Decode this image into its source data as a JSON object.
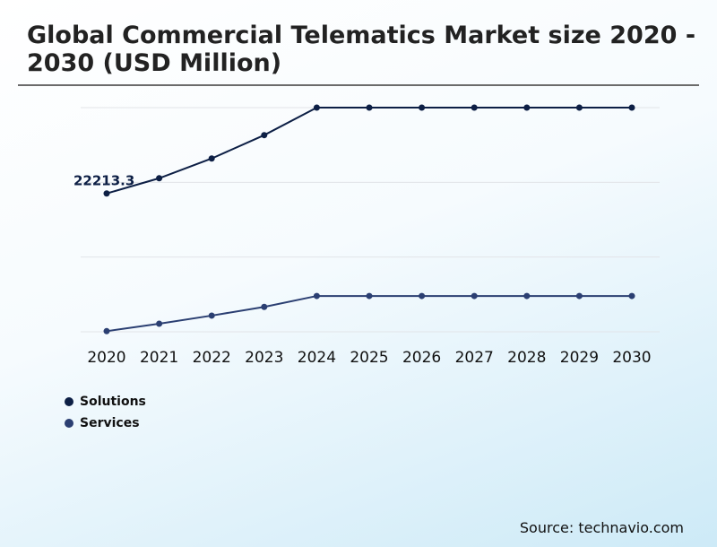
{
  "chart_data": {
    "type": "line",
    "title": "Global Commercial Telematics Market size 2020 - 2030 (USD Million)",
    "categories": [
      "2020",
      "2021",
      "2022",
      "2023",
      "2024",
      "2025",
      "2026",
      "2027",
      "2028",
      "2029",
      "2030"
    ],
    "ylim": [
      0,
      36000
    ],
    "grid": true,
    "legend_position": "bottom-left",
    "series": [
      {
        "name": "Solutions",
        "color": "#0d1f45",
        "values": [
          22213.3,
          24660,
          27830,
          31580,
          36000,
          36000,
          36000,
          36000,
          36000,
          36000,
          36000
        ]
      },
      {
        "name": "Services",
        "color": "#2b3f72",
        "values": [
          100,
          1300,
          2600,
          4000,
          5750,
          5750,
          5750,
          5750,
          5750,
          5750,
          5750
        ]
      }
    ],
    "annotations": [
      {
        "series": "Solutions",
        "category": "2020",
        "text": "22213.3"
      }
    ]
  },
  "source": "Source: technavio.com"
}
